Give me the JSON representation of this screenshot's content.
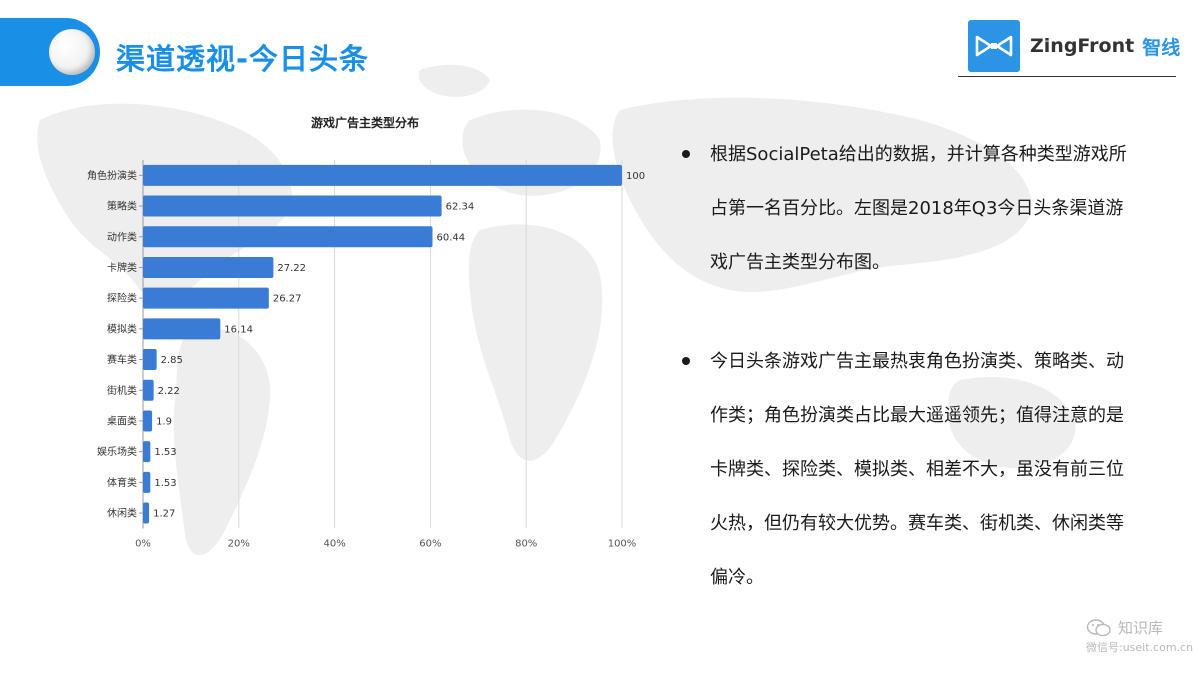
{
  "header": {
    "title": "渠道透视-今日头条"
  },
  "logo": {
    "brand": "ZingFront",
    "brand_cn": "智线"
  },
  "chart_data": {
    "type": "bar",
    "orientation": "horizontal",
    "title": "游戏广告主类型分布",
    "categories": [
      "角色扮演类",
      "策略类",
      "动作类",
      "卡牌类",
      "探险类",
      "模拟类",
      "赛车类",
      "街机类",
      "桌面类",
      "娱乐场类",
      "体育类",
      "休闲类"
    ],
    "values": [
      100,
      62.34,
      60.44,
      27.22,
      26.27,
      16.14,
      2.85,
      2.22,
      1.9,
      1.53,
      1.53,
      1.27
    ],
    "value_labels": [
      "100",
      "62.34",
      "60.44",
      "27.22",
      "26.27",
      "16.14",
      "2.85",
      "2.22",
      "1.9",
      "1.53",
      "1.53",
      "1.27"
    ],
    "x_ticks": [
      "0%",
      "20%",
      "40%",
      "60%",
      "80%",
      "100%"
    ],
    "xlim": [
      0,
      100
    ],
    "grid": true,
    "color": "#3a7bd5"
  },
  "bullets": [
    "根据SocialPeta给出的数据，并计算各种类型游戏所占第一名百分比。左图是2018年Q3今日头条渠道游戏广告主类型分布图。",
    "今日头条游戏广告主最热衷角色扮演类、策略类、动作类；角色扮演类占比最大遥遥领先；值得注意的是卡牌类、探险类、模拟类、相差不大，虽没有前三位火热，但仍有较大优势。赛车类、街机类、休闲类等偏冷。"
  ],
  "watermark": {
    "name": "知识库",
    "sub": "微信号:useit.com.cn"
  }
}
